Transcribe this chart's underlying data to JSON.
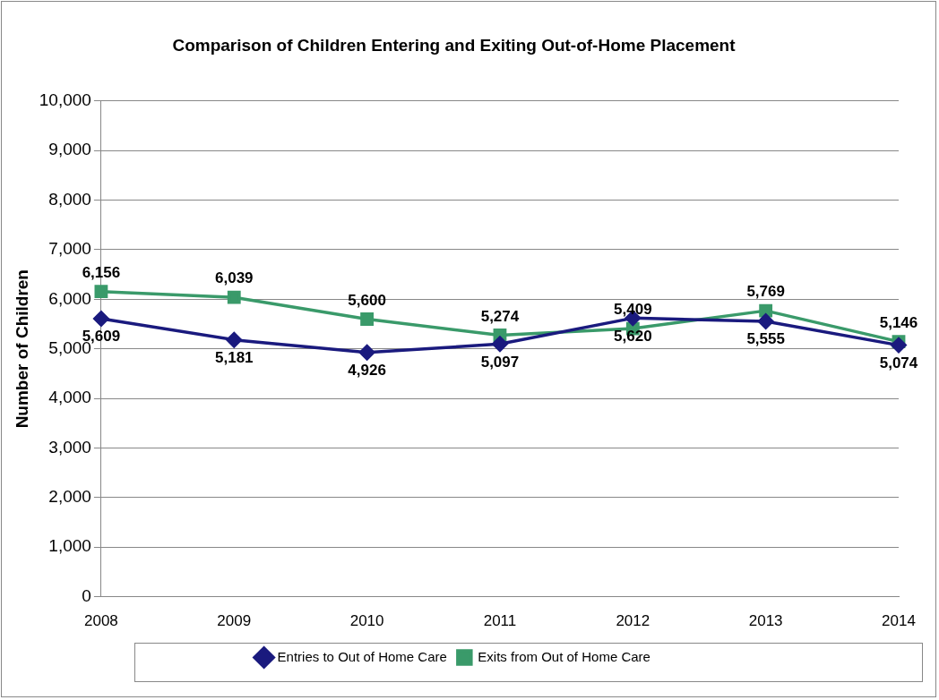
{
  "chart_data": {
    "type": "line",
    "title": "Comparison of Children Entering and Exiting Out-of-Home Placement",
    "ylabel": "Number of Children",
    "categories": [
      "2008",
      "2009",
      "2010",
      "2011",
      "2012",
      "2013",
      "2014"
    ],
    "series": [
      {
        "name": "Entries to Out of Home Care",
        "color": "#1a1a7e",
        "marker": "diamond",
        "values": [
          5609,
          5181,
          4926,
          5097,
          5620,
          5555,
          5074
        ],
        "value_labels": [
          "5,609",
          "5,181",
          "4,926",
          "5,097",
          "5,620",
          "5,555",
          "5,074"
        ]
      },
      {
        "name": "Exits from Out of Home Care",
        "color": "#3a9a6a",
        "marker": "square",
        "values": [
          6156,
          6039,
          5600,
          5274,
          5409,
          5769,
          5146
        ],
        "value_labels": [
          "6,156",
          "6,039",
          "5,600",
          "5,274",
          "5,409",
          "5,769",
          "5,146"
        ]
      }
    ],
    "ylim": [
      0,
      10000
    ],
    "yticks": [
      0,
      {
        "value": 1000,
        "label": "1,000"
      },
      {
        "value": 2000,
        "label": "2,000"
      },
      {
        "value": 3000,
        "label": "3,000"
      },
      {
        "value": 4000,
        "label": "4,000"
      },
      {
        "value": 5000,
        "label": "5,000"
      },
      {
        "value": 6000,
        "label": "6,000"
      },
      {
        "value": 7000,
        "label": "7,000"
      },
      {
        "value": 8000,
        "label": "8,000"
      },
      {
        "value": 9000,
        "label": "9,000"
      },
      {
        "value": 10000,
        "label": "10,000"
      }
    ],
    "grid": "y",
    "legend": "bottom",
    "line_style": "solid"
  }
}
